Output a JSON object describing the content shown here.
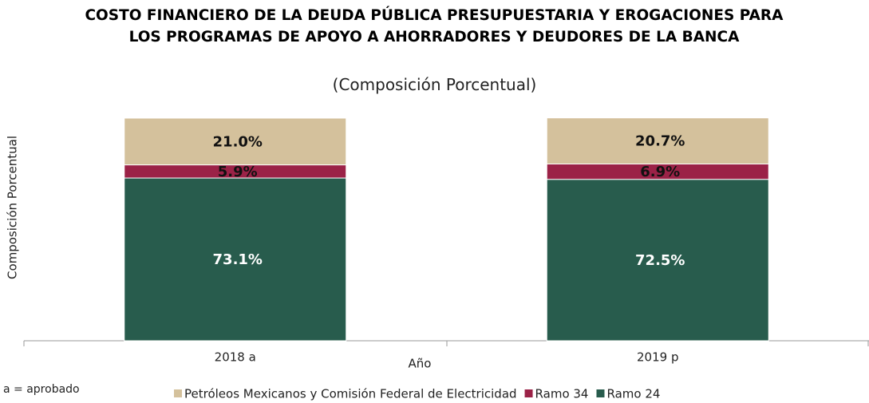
{
  "chart_data": {
    "type": "stacked-bar",
    "title": "COSTO FINANCIERO DE LA DEUDA PÚBLICA PRESUPUESTARIA Y EROGACIONES PARA LOS PROGRAMAS DE APOYO A AHORRADORES Y DEUDORES DE LA BANCA",
    "subtitle": "(Composición Porcentual)",
    "y_label": "Composición Porcentual",
    "x_label": "Año",
    "note": "a = aprobado",
    "categories": [
      "2018 a",
      "2019 p"
    ],
    "ylim": [
      0,
      100
    ],
    "series": [
      {
        "name": "Ramo 24",
        "color": "#285c4d",
        "values": [
          73.1,
          72.5
        ],
        "value_labels": [
          "73.1%",
          "72.5%"
        ]
      },
      {
        "name": "Ramo 34",
        "color": "#9b2247",
        "values": [
          5.9,
          6.9
        ],
        "value_labels": [
          "5.9%",
          "6.9%"
        ]
      },
      {
        "name": "Petróleos Mexicanos y Comisión Federal de Electricidad",
        "color": "#d4c19c",
        "values": [
          21.0,
          20.7
        ],
        "value_labels": [
          "21.0%",
          "20.7%"
        ]
      }
    ],
    "legend_order": [
      2,
      1,
      0
    ]
  }
}
